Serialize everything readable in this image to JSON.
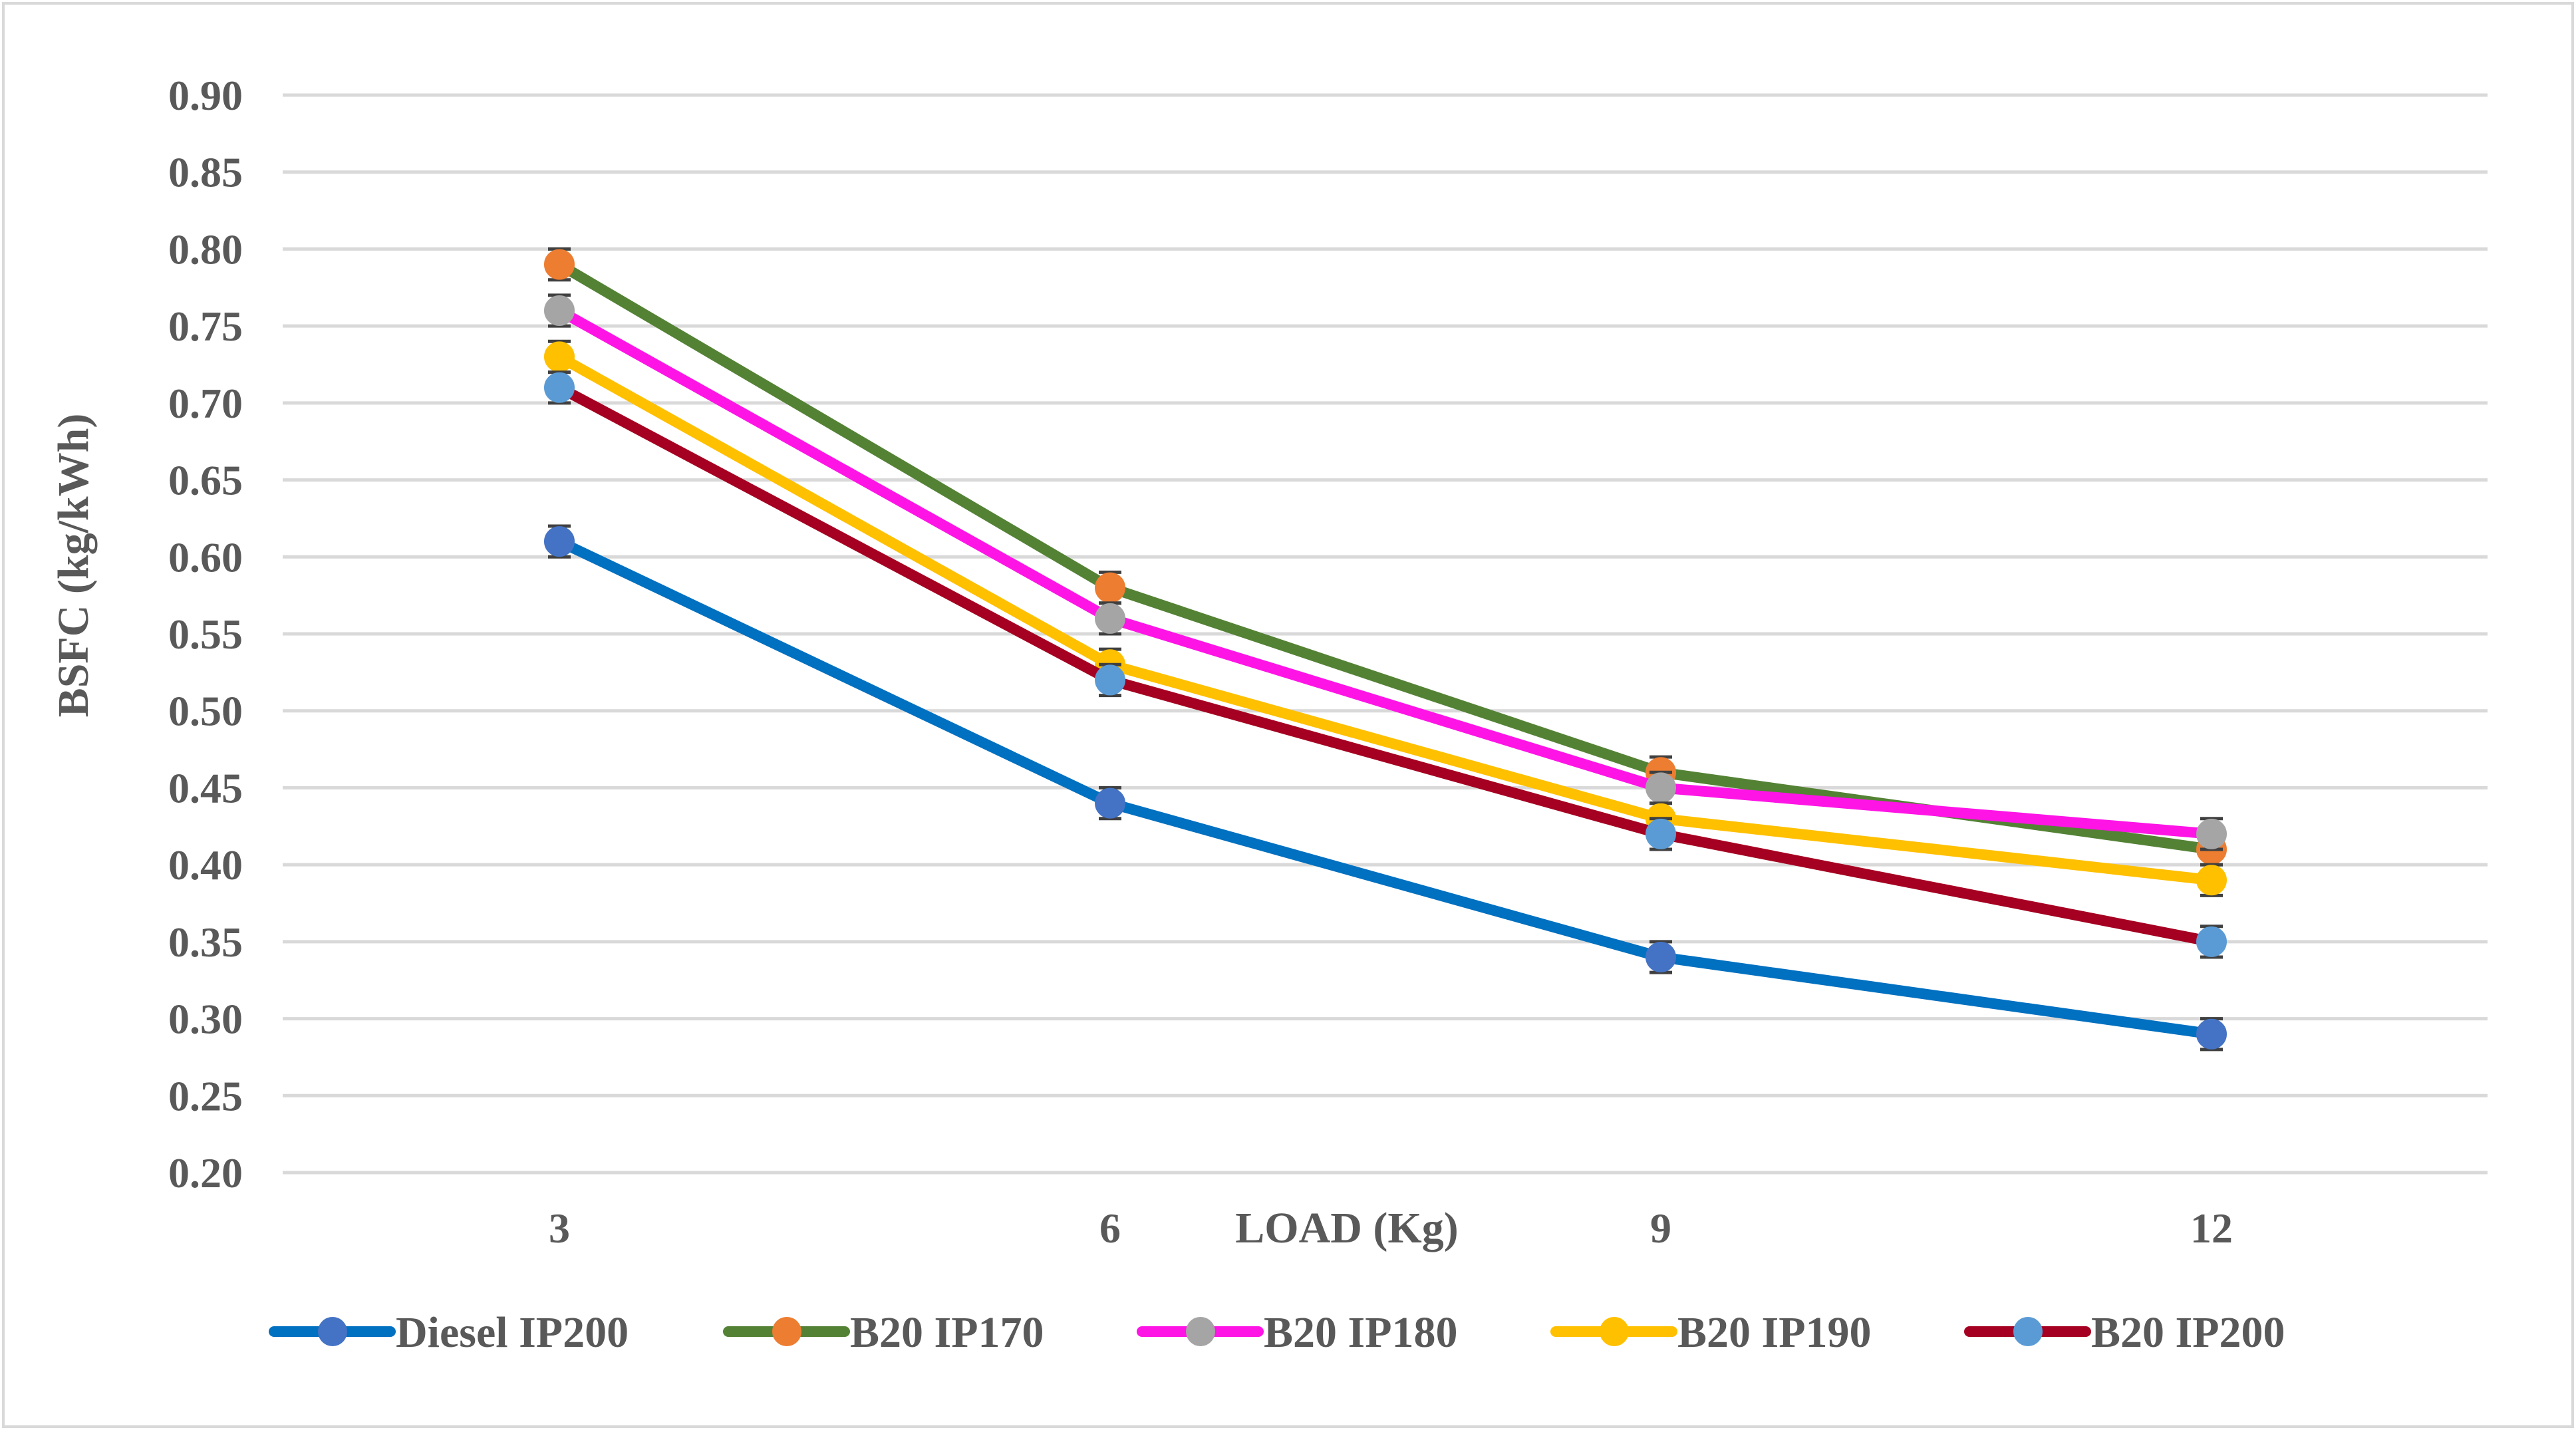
{
  "chart_data": {
    "type": "line",
    "title": "",
    "xlabel": "LOAD (Kg)",
    "ylabel": "BSFC (kg/kWh)",
    "categories": [
      "3",
      "6",
      "9",
      "12"
    ],
    "ylim": [
      0.2,
      0.9
    ],
    "ytick_step": 0.05,
    "ytick_labels": [
      "0.20",
      "0.25",
      "0.30",
      "0.35",
      "0.40",
      "0.45",
      "0.50",
      "0.55",
      "0.60",
      "0.65",
      "0.70",
      "0.75",
      "0.80",
      "0.85",
      "0.90"
    ],
    "grid": true,
    "legend_position": "bottom",
    "error_bar": 0.01,
    "series": [
      {
        "name": "Diesel IP200",
        "values": [
          0.61,
          0.44,
          0.34,
          0.29
        ],
        "line_color": "#0070C0",
        "marker_color": "#4472C4"
      },
      {
        "name": "B20 IP170",
        "values": [
          0.79,
          0.58,
          0.46,
          0.41
        ],
        "line_color": "#548235",
        "marker_color": "#ED7D31"
      },
      {
        "name": "B20 IP180",
        "values": [
          0.76,
          0.56,
          0.45,
          0.42
        ],
        "line_color": "#FF14E6",
        "marker_color": "#A5A5A5"
      },
      {
        "name": "B20 IP190",
        "values": [
          0.73,
          0.53,
          0.43,
          0.39
        ],
        "line_color": "#FFC000",
        "marker_color": "#FFC000"
      },
      {
        "name": "B20 IP200",
        "values": [
          0.71,
          0.52,
          0.42,
          0.35
        ],
        "line_color": "#A50021",
        "marker_color": "#5B9BD5"
      }
    ]
  }
}
